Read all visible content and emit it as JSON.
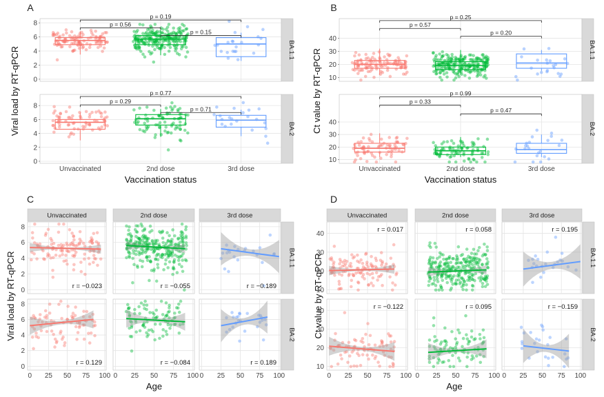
{
  "figure": {
    "colors": {
      "unvaccinated": "#F8766D",
      "second": "#00BA38",
      "third": "#619CFF",
      "panel_bg": "#ffffff",
      "grid": "#e4e4e4",
      "strip": "#d9d9d9"
    },
    "group_labels": [
      "Unvaccinated",
      "2nd dose",
      "3rd dose"
    ],
    "variant_labels": [
      "BA.1.1",
      "BA.2"
    ]
  },
  "chart_data": [
    {
      "panel_label": "A",
      "type": "box",
      "ylabel": "Viral load by RT-qPCR",
      "xlabel": "Vaccination status",
      "categories": [
        "Unvaccinated",
        "2nd dose",
        "3rd dose"
      ],
      "facets": [
        {
          "strip": "BA.1.1",
          "ylim": [
            -0.3,
            8.6
          ],
          "yticks": [
            0,
            2,
            4,
            6,
            8
          ],
          "boxes": [
            {
              "q1": 4.9,
              "median": 5.5,
              "q3": 5.9,
              "lo": 3.5,
              "hi": 6.8
            },
            {
              "q1": 4.9,
              "median": 5.7,
              "q3": 6.2,
              "lo": 3.4,
              "hi": 7.0
            },
            {
              "q1": 3.2,
              "median": 5.0,
              "q3": 5.9,
              "lo": 2.6,
              "hi": 6.6
            }
          ],
          "comparisons": [
            {
              "from": 0,
              "to": 2,
              "label": "p = 0.19",
              "y": 8.4
            },
            {
              "from": 0,
              "to": 1,
              "label": "p = 0.56",
              "y": 7.3
            },
            {
              "from": 1,
              "to": 2,
              "label": "p = 0.15",
              "y": 6.2
            }
          ]
        },
        {
          "strip": "BA.2",
          "ylim": [
            -0.3,
            9.6
          ],
          "yticks": [
            0,
            2,
            4,
            6,
            8
          ],
          "boxes": [
            {
              "q1": 4.6,
              "median": 5.6,
              "q3": 6.0,
              "lo": 3.0,
              "hi": 7.0
            },
            {
              "q1": 5.2,
              "median": 6.1,
              "q3": 6.7,
              "lo": 3.5,
              "hi": 7.5
            },
            {
              "q1": 4.9,
              "median": 5.9,
              "q3": 6.6,
              "lo": 3.6,
              "hi": 7.4
            }
          ],
          "comparisons": [
            {
              "from": 0,
              "to": 2,
              "label": "p = 0.77",
              "y": 9.3
            },
            {
              "from": 0,
              "to": 1,
              "label": "p = 0.29",
              "y": 8.1
            },
            {
              "from": 1,
              "to": 2,
              "label": "p = 0.71",
              "y": 7.0
            }
          ]
        }
      ]
    },
    {
      "panel_label": "B",
      "type": "box",
      "ylabel": "Ct value by RT-qPCR",
      "xlabel": "Vaccination status",
      "categories": [
        "Unvaccinated",
        "2nd dose",
        "3rd dose"
      ],
      "facets": [
        {
          "strip": "BA.1.1",
          "ylim": [
            7,
            55
          ],
          "yticks": [
            10,
            20,
            30,
            40
          ],
          "boxes": [
            {
              "q1": 17,
              "median": 20,
              "q3": 23,
              "lo": 12,
              "hi": 32
            },
            {
              "q1": 16,
              "median": 19,
              "q3": 22,
              "lo": 12,
              "hi": 31
            },
            {
              "q1": 17,
              "median": 21,
              "q3": 28,
              "lo": 15,
              "hi": 31
            }
          ],
          "comparisons": [
            {
              "from": 0,
              "to": 2,
              "label": "p = 0.25",
              "y": 53.5
            },
            {
              "from": 0,
              "to": 1,
              "label": "p = 0.57",
              "y": 47.5
            },
            {
              "from": 1,
              "to": 2,
              "label": "p = 0.20",
              "y": 41.5
            }
          ]
        },
        {
          "strip": "BA.2",
          "ylim": [
            7,
            62
          ],
          "yticks": [
            10,
            20,
            30,
            40
          ],
          "boxes": [
            {
              "q1": 16,
              "median": 19,
              "q3": 23,
              "lo": 12,
              "hi": 31
            },
            {
              "q1": 14,
              "median": 17,
              "q3": 20,
              "lo": 12,
              "hi": 28
            },
            {
              "q1": 15,
              "median": 18,
              "q3": 23,
              "lo": 12,
              "hi": 30
            }
          ],
          "comparisons": [
            {
              "from": 0,
              "to": 2,
              "label": "p = 0.99",
              "y": 60
            },
            {
              "from": 0,
              "to": 1,
              "label": "p = 0.33",
              "y": 53.5
            },
            {
              "from": 1,
              "to": 2,
              "label": "p = 0.47",
              "y": 46.5
            }
          ]
        }
      ]
    },
    {
      "panel_label": "C",
      "type": "scatter",
      "ylabel": "Viral load by RT-qPCR",
      "xlabel": "Age",
      "xlim": [
        -3,
        102
      ],
      "xticks": [
        0,
        25,
        50,
        75,
        100
      ],
      "ylim": [
        -0.5,
        8.6
      ],
      "yticks": [
        0,
        2,
        4,
        6,
        8
      ],
      "columns": [
        "Unvaccinated",
        "2nd dose",
        "3rd dose"
      ],
      "rows": [
        "BA.1.1",
        "BA.2"
      ],
      "fits": [
        [
          {
            "x0": 0,
            "x1": 95,
            "y0": 5.35,
            "y1": 5.15,
            "xmin": 1,
            "xmax": 95,
            "n": 120,
            "r_label": "r = −0.023",
            "r_pos": "bottom"
          },
          {
            "x0": 14,
            "x1": 90,
            "y0": 5.6,
            "y1": 5.2,
            "xmin": 14,
            "xmax": 92,
            "n": 280,
            "r_label": "r = −0.055",
            "r_pos": "bottom"
          },
          {
            "x0": 25,
            "x1": 100,
            "y0": 5.2,
            "y1": 4.2,
            "xmin": 24,
            "xmax": 98,
            "n": 22,
            "r_label": "r = −0.189",
            "r_pos": "bottom"
          }
        ],
        [
          {
            "x0": 0,
            "x1": 85,
            "y0": 5.2,
            "y1": 6.0,
            "xmin": 1,
            "xmax": 88,
            "n": 80,
            "r_label": "r = 0.129",
            "r_pos": "bottom"
          },
          {
            "x0": 14,
            "x1": 90,
            "y0": 6.1,
            "y1": 5.7,
            "xmin": 14,
            "xmax": 88,
            "n": 90,
            "r_label": "r = −0.084",
            "r_pos": "bottom"
          },
          {
            "x0": 25,
            "x1": 85,
            "y0": 5.2,
            "y1": 6.3,
            "xmin": 22,
            "xmax": 90,
            "n": 25,
            "r_label": "r = 0.189",
            "r_pos": "bottom"
          }
        ]
      ]
    },
    {
      "panel_label": "D",
      "type": "scatter",
      "ylabel": "Ct value by RT-qPCR",
      "xlabel": "Age",
      "xlim": [
        -3,
        102
      ],
      "xticks": [
        0,
        25,
        50,
        75,
        100
      ],
      "ylim": [
        8,
        46
      ],
      "yticks": [
        10,
        20,
        30,
        40
      ],
      "columns": [
        "Unvaccinated",
        "2nd dose",
        "3rd dose"
      ],
      "rows": [
        "BA.1.1",
        "BA.2"
      ],
      "fits": [
        [
          {
            "x0": 0,
            "x1": 85,
            "y0": 20.2,
            "y1": 21.0,
            "xmin": 1,
            "xmax": 88,
            "n": 120,
            "r_label": "r = 0.017",
            "r_pos": "top"
          },
          {
            "x0": 14,
            "x1": 90,
            "y0": 19.4,
            "y1": 20.6,
            "xmin": 14,
            "xmax": 92,
            "n": 280,
            "r_label": "r = 0.058",
            "r_pos": "top"
          },
          {
            "x0": 25,
            "x1": 100,
            "y0": 21.0,
            "y1": 25.0,
            "xmin": 24,
            "xmax": 96,
            "n": 22,
            "r_label": "r = 0.195",
            "r_pos": "top"
          }
        ],
        [
          {
            "x0": 0,
            "x1": 85,
            "y0": 20.8,
            "y1": 18.0,
            "xmin": 1,
            "xmax": 88,
            "n": 80,
            "r_label": "r = −0.122",
            "r_pos": "top"
          },
          {
            "x0": 14,
            "x1": 90,
            "y0": 17.5,
            "y1": 19.4,
            "xmin": 14,
            "xmax": 88,
            "n": 90,
            "r_label": "r = 0.095",
            "r_pos": "top"
          },
          {
            "x0": 25,
            "x1": 85,
            "y0": 21.0,
            "y1": 18.2,
            "xmin": 22,
            "xmax": 90,
            "n": 25,
            "r_label": "r = −0.159",
            "r_pos": "top"
          }
        ]
      ]
    }
  ]
}
